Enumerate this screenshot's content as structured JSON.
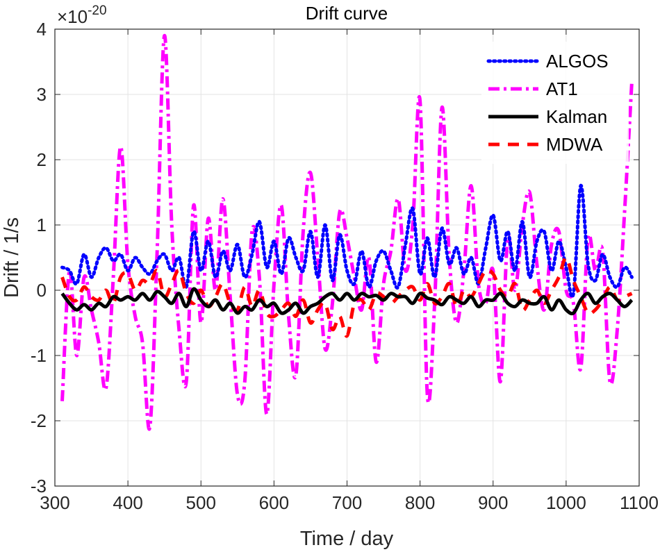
{
  "chart_data": {
    "type": "line",
    "title": "Drift curve",
    "xlabel": "Time / day",
    "ylabel": "Drift / 1/s",
    "y_exponent_label": "×10",
    "y_exponent_power": "-20",
    "xlim": [
      300,
      1100
    ],
    "ylim": [
      -3,
      4
    ],
    "xticks": [
      300,
      400,
      500,
      600,
      700,
      800,
      900,
      1000,
      1100
    ],
    "yticks": [
      -3,
      -2,
      -1,
      0,
      1,
      2,
      3,
      4
    ],
    "grid": true,
    "legend_position": "top-right",
    "series": [
      {
        "name": "ALGOS",
        "color": "#0000ff",
        "style": "dotted",
        "x": [
          310,
          320,
          330,
          340,
          350,
          360,
          370,
          380,
          390,
          400,
          410,
          420,
          430,
          440,
          450,
          460,
          470,
          480,
          490,
          500,
          510,
          520,
          530,
          540,
          550,
          560,
          570,
          580,
          590,
          600,
          610,
          620,
          630,
          640,
          650,
          660,
          670,
          680,
          690,
          700,
          710,
          720,
          730,
          740,
          750,
          760,
          770,
          780,
          790,
          800,
          810,
          820,
          830,
          840,
          850,
          860,
          870,
          880,
          890,
          900,
          910,
          920,
          930,
          940,
          950,
          960,
          970,
          980,
          990,
          1000,
          1010,
          1020,
          1030,
          1040,
          1050,
          1060,
          1070,
          1080,
          1090
        ],
        "values": [
          0.35,
          0.3,
          0.1,
          0.55,
          0.2,
          0.5,
          0.65,
          0.45,
          0.55,
          0.3,
          0.5,
          0.35,
          0.25,
          0.45,
          0.55,
          0.3,
          0.5,
          0.05,
          0.9,
          0.3,
          0.75,
          0.2,
          0.6,
          0.3,
          0.7,
          0.2,
          0.55,
          1.05,
          0.35,
          0.75,
          0.25,
          0.8,
          0.5,
          0.3,
          0.9,
          0.2,
          1.0,
          0.15,
          0.85,
          0.3,
          0.1,
          0.6,
          0.05,
          0.45,
          0.6,
          0.3,
          0.05,
          0.7,
          1.25,
          0.25,
          0.8,
          0.2,
          0.95,
          0.4,
          0.65,
          0.25,
          0.5,
          0.1,
          0.65,
          1.15,
          0.45,
          0.9,
          0.3,
          1.05,
          0.2,
          0.75,
          0.9,
          0.3,
          0.75,
          0.35,
          -0.05,
          1.6,
          0.4,
          0.15,
          0.55,
          0.2,
          0.05,
          0.35,
          0.2
        ]
      },
      {
        "name": "AT1",
        "color": "#ff00ff",
        "style": "dashdot",
        "x": [
          310,
          320,
          330,
          340,
          350,
          360,
          370,
          380,
          390,
          400,
          410,
          420,
          430,
          440,
          450,
          460,
          470,
          480,
          490,
          500,
          510,
          520,
          530,
          540,
          550,
          560,
          570,
          580,
          590,
          600,
          610,
          620,
          630,
          640,
          650,
          660,
          670,
          680,
          690,
          700,
          710,
          720,
          730,
          740,
          750,
          760,
          770,
          780,
          790,
          800,
          810,
          820,
          830,
          840,
          850,
          860,
          870,
          880,
          890,
          900,
          910,
          920,
          930,
          940,
          950,
          960,
          970,
          980,
          990,
          1000,
          1010,
          1020,
          1030,
          1040,
          1050,
          1060,
          1070,
          1080,
          1090
        ],
        "values": [
          -1.7,
          0.3,
          -1.0,
          0.2,
          -0.3,
          -0.8,
          -1.5,
          0.2,
          2.2,
          0.4,
          -0.4,
          -0.8,
          -2.1,
          0.6,
          3.9,
          1.0,
          -0.6,
          -1.4,
          1.3,
          -0.5,
          1.1,
          0.0,
          1.4,
          -0.1,
          -1.6,
          -1.4,
          0.9,
          0.2,
          -1.9,
          0.1,
          1.3,
          -0.4,
          -1.3,
          0.9,
          1.8,
          0.5,
          -0.9,
          -0.2,
          1.2,
          0.8,
          0.2,
          -0.3,
          0.5,
          -1.1,
          0.1,
          0.6,
          1.4,
          0.3,
          1.0,
          2.9,
          -1.6,
          -0.2,
          2.8,
          0.5,
          -0.5,
          0.3,
          1.6,
          0.1,
          -0.2,
          0.3,
          -1.4,
          0.8,
          0.0,
          1.0,
          1.5,
          0.4,
          -0.3,
          0.7,
          0.9,
          0.0,
          -0.2,
          -1.2,
          0.8,
          0.3,
          0.6,
          -1.4,
          -0.6,
          1.2,
          3.2
        ]
      },
      {
        "name": "Kalman",
        "color": "#000000",
        "style": "solid",
        "x": [
          310,
          320,
          330,
          340,
          350,
          360,
          370,
          380,
          390,
          400,
          410,
          420,
          430,
          440,
          450,
          460,
          470,
          480,
          490,
          500,
          510,
          520,
          530,
          540,
          550,
          560,
          570,
          580,
          590,
          600,
          610,
          620,
          630,
          640,
          650,
          660,
          670,
          680,
          690,
          700,
          710,
          720,
          730,
          740,
          750,
          760,
          770,
          780,
          790,
          800,
          810,
          820,
          830,
          840,
          850,
          860,
          870,
          880,
          890,
          900,
          910,
          920,
          930,
          940,
          950,
          960,
          970,
          980,
          990,
          1000,
          1010,
          1020,
          1030,
          1040,
          1050,
          1060,
          1070,
          1080,
          1090
        ],
        "values": [
          -0.05,
          -0.2,
          -0.3,
          -0.22,
          -0.3,
          -0.2,
          -0.25,
          -0.1,
          -0.15,
          -0.1,
          -0.15,
          -0.05,
          -0.15,
          -0.02,
          -0.1,
          -0.2,
          -0.05,
          -0.25,
          0.02,
          -0.15,
          -0.25,
          -0.15,
          -0.3,
          -0.2,
          -0.35,
          -0.25,
          -0.3,
          -0.15,
          -0.25,
          -0.2,
          -0.35,
          -0.3,
          -0.2,
          -0.35,
          -0.25,
          -0.2,
          -0.1,
          -0.05,
          -0.15,
          -0.05,
          -0.15,
          -0.05,
          -0.1,
          -0.08,
          -0.15,
          -0.05,
          -0.1,
          -0.1,
          -0.2,
          -0.05,
          -0.12,
          -0.15,
          -0.22,
          -0.1,
          -0.15,
          -0.2,
          -0.1,
          -0.25,
          -0.15,
          -0.15,
          -0.05,
          -0.2,
          -0.25,
          -0.15,
          -0.2,
          -0.2,
          -0.1,
          -0.3,
          -0.15,
          -0.3,
          -0.35,
          -0.15,
          -0.05,
          -0.2,
          -0.1,
          -0.05,
          -0.15,
          -0.25,
          -0.15
        ]
      },
      {
        "name": "MDWA",
        "color": "#ff0000",
        "style": "dashed",
        "x": [
          310,
          320,
          330,
          340,
          350,
          360,
          370,
          380,
          390,
          400,
          410,
          420,
          430,
          440,
          450,
          460,
          470,
          480,
          490,
          500,
          510,
          520,
          530,
          540,
          550,
          560,
          570,
          580,
          590,
          600,
          610,
          620,
          630,
          640,
          650,
          660,
          670,
          680,
          690,
          700,
          710,
          720,
          730,
          740,
          750,
          760,
          770,
          780,
          790,
          800,
          810,
          820,
          830,
          840,
          850,
          860,
          870,
          880,
          890,
          900,
          910,
          920,
          930,
          940,
          950,
          960,
          970,
          980,
          990,
          1000,
          1010,
          1020,
          1030,
          1040,
          1050,
          1060,
          1070,
          1080,
          1090
        ],
        "values": [
          0.2,
          -0.1,
          -0.15,
          0.05,
          -0.1,
          -0.15,
          0.0,
          -0.2,
          0.2,
          0.25,
          0.0,
          0.15,
          0.1,
          0.3,
          -0.1,
          0.1,
          0.3,
          -0.05,
          -0.2,
          0.0,
          -0.25,
          -0.1,
          0.1,
          -0.2,
          -0.3,
          0.05,
          -0.25,
          0.0,
          -0.35,
          -0.4,
          -0.3,
          -0.2,
          -0.4,
          -0.15,
          -0.5,
          -0.3,
          -0.2,
          -0.6,
          -0.4,
          -0.7,
          -0.2,
          -0.15,
          -0.3,
          -0.05,
          -0.1,
          -0.2,
          -0.1,
          0.0,
          0.05,
          -0.15,
          0.1,
          -0.2,
          -0.1,
          0.1,
          -0.25,
          0.0,
          -0.1,
          0.1,
          0.3,
          0.25,
          0.0,
          -0.1,
          0.1,
          -0.3,
          -0.15,
          0.0,
          -0.2,
          0.0,
          0.2,
          0.5,
          0.15,
          -0.1,
          -0.35,
          -0.3,
          -0.15,
          0.05,
          -0.15,
          -0.1,
          -0.05
        ]
      }
    ]
  }
}
